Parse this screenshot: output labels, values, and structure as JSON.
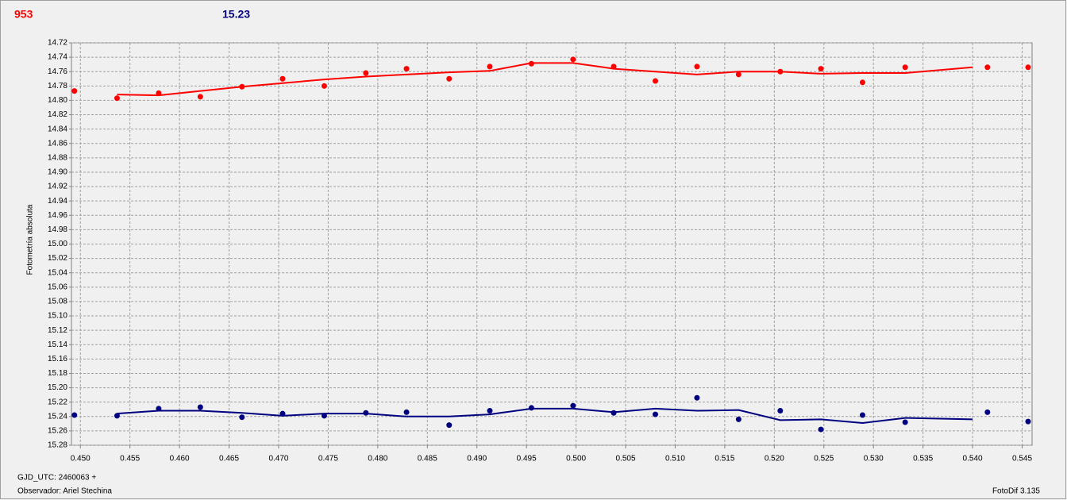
{
  "header": {
    "left": "953",
    "right": "15.23"
  },
  "footer": {
    "date": "GJD_UTC: 2460063 +",
    "observer": "Observador: Ariel Stechina",
    "software": "FotoDif 3.135"
  },
  "chart_data": {
    "type": "scatter",
    "ylabel": "Fotometría absoluta",
    "grid": true,
    "xlim": [
      0.4491,
      0.546
    ],
    "ylim": [
      15.28,
      14.72
    ],
    "xticks": [
      {
        "value": 0.45,
        "label": "0.450"
      },
      0.455,
      {
        "value": 0.46,
        "label": "0.460"
      },
      0.465,
      {
        "value": 0.47,
        "label": "0.470"
      },
      0.475,
      {
        "value": 0.48,
        "label": "0.480"
      },
      0.485,
      {
        "value": 0.49,
        "label": "0.490"
      },
      0.495,
      {
        "value": 0.5,
        "label": "0.500"
      },
      0.505,
      {
        "value": 0.51,
        "label": "0.510"
      },
      0.515,
      {
        "value": 0.52,
        "label": "0.520"
      },
      0.525,
      {
        "value": 0.53,
        "label": "0.530"
      },
      0.535,
      {
        "value": 0.54,
        "label": "0.540"
      },
      0.545
    ],
    "yticks": [
      14.72,
      14.74,
      14.76,
      14.78,
      {
        "value": 14.8,
        "label": "14.80"
      },
      14.82,
      14.84,
      14.86,
      14.88,
      {
        "value": 14.9,
        "label": "14.90"
      },
      14.92,
      14.94,
      14.96,
      14.98,
      {
        "value": 15,
        "label": "15.00"
      },
      15.02,
      15.04,
      15.06,
      15.08,
      {
        "value": 15.1,
        "label": "15.10"
      },
      15.12,
      15.14,
      15.16,
      15.18,
      {
        "value": 15.2,
        "label": "15.20"
      },
      15.22,
      15.24,
      15.26,
      15.28
    ],
    "series": [
      {
        "color": "#ff0000",
        "mode": "markers",
        "x": [
          0.4494,
          0.4537,
          0.4579,
          0.4621,
          0.4663,
          0.4704,
          0.4746,
          0.4788,
          0.4829,
          0.4872,
          0.4913,
          0.4955,
          0.4997,
          0.5038,
          0.508,
          0.5122,
          0.5164,
          0.5206,
          0.5247,
          0.5289,
          0.5332,
          0.5415,
          0.5456
        ],
        "values": [
          14.787,
          14.797,
          14.79,
          14.795,
          14.781,
          14.77,
          14.78,
          14.762,
          14.756,
          14.77,
          14.753,
          14.749,
          14.743,
          14.753,
          14.773,
          14.753,
          14.764,
          14.76,
          14.756,
          14.775,
          14.754,
          14.754,
          14.754
        ]
      },
      {
        "color": "#ff0000",
        "mode": "line",
        "x": [
          0.4537,
          0.4579,
          0.4621,
          0.4663,
          0.4704,
          0.4746,
          0.4788,
          0.4829,
          0.4872,
          0.4913,
          0.4955,
          0.4997,
          0.5038,
          0.508,
          0.5122,
          0.5164,
          0.5206,
          0.5247,
          0.5289,
          0.5332,
          0.54
        ],
        "values": [
          14.792,
          14.793,
          14.787,
          14.781,
          14.776,
          14.771,
          14.767,
          14.764,
          14.761,
          14.759,
          14.748,
          14.748,
          14.756,
          14.76,
          14.764,
          14.76,
          14.76,
          14.763,
          14.762,
          14.762,
          14.754
        ]
      },
      {
        "color": "#000080",
        "mode": "markers",
        "x": [
          0.4494,
          0.4537,
          0.4579,
          0.4621,
          0.4663,
          0.4704,
          0.4746,
          0.4788,
          0.4829,
          0.4872,
          0.4913,
          0.4955,
          0.4997,
          0.5038,
          0.508,
          0.5122,
          0.5164,
          0.5206,
          0.5247,
          0.5289,
          0.5332,
          0.5415,
          0.5456
        ],
        "values": [
          15.238,
          15.239,
          15.229,
          15.227,
          15.241,
          15.236,
          15.239,
          15.235,
          15.234,
          15.252,
          15.232,
          15.228,
          15.225,
          15.235,
          15.237,
          15.214,
          15.244,
          15.232,
          15.258,
          15.238,
          15.248,
          15.234,
          15.247
        ]
      },
      {
        "color": "#000080",
        "mode": "line",
        "x": [
          0.4537,
          0.4579,
          0.4621,
          0.4663,
          0.4704,
          0.4746,
          0.4788,
          0.4829,
          0.4872,
          0.4913,
          0.4955,
          0.4997,
          0.5038,
          0.508,
          0.5122,
          0.5164,
          0.5206,
          0.5247,
          0.5289,
          0.5332,
          0.54
        ],
        "values": [
          15.236,
          15.232,
          15.232,
          15.235,
          15.239,
          15.236,
          15.236,
          15.24,
          15.24,
          15.237,
          15.229,
          15.229,
          15.234,
          15.229,
          15.232,
          15.231,
          15.245,
          15.244,
          15.249,
          15.242,
          15.244
        ]
      }
    ]
  }
}
